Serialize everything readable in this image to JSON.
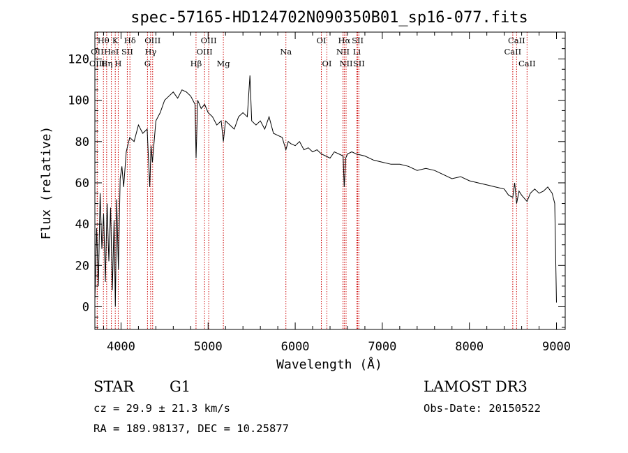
{
  "chart_data": {
    "type": "line",
    "title": "spec-57165-HD124702N090350B01_sp16-077.fits",
    "xlabel": "Wavelength (Å)",
    "ylabel": "Flux (relative)",
    "xlim": [
      3700,
      9100
    ],
    "ylim": [
      -11,
      133
    ],
    "xticks": [
      4000,
      5000,
      6000,
      7000,
      8000,
      9000
    ],
    "yticks": [
      0,
      20,
      40,
      60,
      80,
      100,
      120
    ],
    "grid": false,
    "series": [
      {
        "x": [
          3700,
          3720,
          3740,
          3760,
          3780,
          3800,
          3820,
          3840,
          3860,
          3880,
          3900,
          3920,
          3935,
          3950,
          3970,
          3990,
          4010,
          4030,
          4060,
          4100,
          4150,
          4200,
          4250,
          4300,
          4330,
          4345,
          4360,
          4400,
          4450,
          4500,
          4550,
          4600,
          4650,
          4700,
          4750,
          4800,
          4850,
          4862,
          4880,
          4920,
          4960,
          5000,
          5050,
          5100,
          5150,
          5175,
          5200,
          5250,
          5300,
          5350,
          5400,
          5450,
          5480,
          5500,
          5550,
          5600,
          5650,
          5700,
          5750,
          5800,
          5850,
          5893,
          5920,
          5950,
          6000,
          6050,
          6100,
          6150,
          6200,
          6250,
          6300,
          6350,
          6400,
          6450,
          6500,
          6550,
          6563,
          6580,
          6600,
          6650,
          6700,
          6800,
          6900,
          7000,
          7100,
          7200,
          7300,
          7400,
          7500,
          7600,
          7700,
          7800,
          7900,
          8000,
          8100,
          8200,
          8300,
          8400,
          8450,
          8498,
          8520,
          8542,
          8570,
          8600,
          8662,
          8700,
          8750,
          8800,
          8850,
          8900,
          8950,
          8980,
          9000
        ],
        "values": [
          3,
          38,
          10,
          55,
          28,
          45,
          12,
          50,
          22,
          48,
          8,
          42,
          0,
          52,
          18,
          62,
          68,
          58,
          75,
          82,
          80,
          88,
          84,
          86,
          58,
          78,
          70,
          90,
          94,
          100,
          102,
          104,
          101,
          105,
          104,
          102,
          98,
          72,
          100,
          96,
          98,
          94,
          92,
          88,
          90,
          80,
          90,
          88,
          86,
          92,
          94,
          92,
          112,
          90,
          88,
          90,
          86,
          92,
          84,
          83,
          82,
          76,
          80,
          79,
          78,
          80,
          76,
          77,
          75,
          76,
          74,
          73,
          72,
          75,
          74,
          73,
          58,
          72,
          74,
          75,
          74,
          73,
          71,
          70,
          69,
          69,
          68,
          66,
          67,
          66,
          64,
          62,
          63,
          61,
          60,
          59,
          58,
          57,
          54,
          53,
          60,
          50,
          56,
          54,
          51,
          55,
          57,
          55,
          56,
          58,
          55,
          50,
          2
        ]
      }
    ],
    "spectral_lines": [
      {
        "name": "Hθ",
        "wl": 3798,
        "row": 1
      },
      {
        "name": "OII",
        "wl": 3727,
        "row": 2
      },
      {
        "name": "OIII",
        "wl": 3727,
        "row": 3
      },
      {
        "name": "Hη",
        "wl": 3835,
        "row": 3
      },
      {
        "name": "HeI",
        "wl": 3889,
        "row": 2
      },
      {
        "name": "K",
        "wl": 3934,
        "row": 1
      },
      {
        "name": "H",
        "wl": 3968,
        "row": 3
      },
      {
        "name": "Hδ",
        "wl": 4102,
        "row": 1
      },
      {
        "name": "SII",
        "wl": 4072,
        "row": 2
      },
      {
        "name": "OIII",
        "wl": 4363,
        "row": 1
      },
      {
        "name": "Hγ",
        "wl": 4340,
        "row": 2
      },
      {
        "name": "G",
        "wl": 4304,
        "row": 3
      },
      {
        "name": "Hβ",
        "wl": 4861,
        "row": 3
      },
      {
        "name": "OIII",
        "wl": 5007,
        "row": 1
      },
      {
        "name": "OIII",
        "wl": 4959,
        "row": 2
      },
      {
        "name": "Mg",
        "wl": 5175,
        "row": 3
      },
      {
        "name": "Na",
        "wl": 5893,
        "row": 2
      },
      {
        "name": "OI",
        "wl": 6300,
        "row": 1
      },
      {
        "name": "OI",
        "wl": 6364,
        "row": 3
      },
      {
        "name": "Hα",
        "wl": 6563,
        "row": 1
      },
      {
        "name": "NII",
        "wl": 6548,
        "row": 2
      },
      {
        "name": "NII",
        "wl": 6584,
        "row": 3
      },
      {
        "name": "SII",
        "wl": 6717,
        "row": 1
      },
      {
        "name": "Li",
        "wl": 6708,
        "row": 2
      },
      {
        "name": "SII",
        "wl": 6731,
        "row": 3
      },
      {
        "name": "CaII",
        "wl": 8542,
        "row": 1
      },
      {
        "name": "CaII",
        "wl": 8498,
        "row": 2
      },
      {
        "name": "CaII",
        "wl": 8662,
        "row": 3
      }
    ]
  },
  "info": {
    "class_label": "STAR",
    "subclass_label": "G1",
    "survey_label": "LAMOST DR3",
    "cz_text": "cz = 29.9 ± 21.3 km/s",
    "obs_date_text": "Obs-Date: 20150522",
    "radec_text": "RA = 189.98137, DEC =  10.25877"
  },
  "colors": {
    "spectrum": "#000000",
    "line_markers": "#cc0000",
    "axes": "#000000"
  }
}
